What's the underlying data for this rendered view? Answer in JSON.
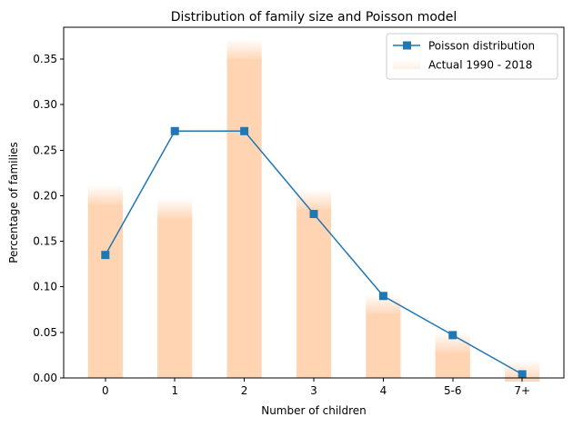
{
  "chart_data": {
    "type": "bar",
    "title": "Distribution of family size and Poisson model",
    "xlabel": "Number of children",
    "ylabel": "Percentage of families",
    "categories": [
      "0",
      "1",
      "2",
      "3",
      "4",
      "5-6",
      "7+"
    ],
    "ylim": [
      0,
      0.385
    ],
    "yticks": [
      0.0,
      0.05,
      0.1,
      0.15,
      0.2,
      0.25,
      0.3,
      0.35
    ],
    "ytick_labels": [
      "0.00",
      "0.05",
      "0.10",
      "0.15",
      "0.20",
      "0.25",
      "0.30",
      "0.35"
    ],
    "grid": false,
    "legend_position": "top-right",
    "series": [
      {
        "name": "Poisson distribution",
        "kind": "line",
        "marker": "square",
        "color": "#1f77b4",
        "values": [
          0.135,
          0.271,
          0.271,
          0.18,
          0.09,
          0.047,
          0.004
        ]
      },
      {
        "name": "Actual 1990 - 2018",
        "kind": "bar",
        "color": "#ffd4b3",
        "values": [
          0.2,
          0.185,
          0.36,
          0.195,
          0.08,
          0.038,
          0.008
        ]
      }
    ]
  }
}
